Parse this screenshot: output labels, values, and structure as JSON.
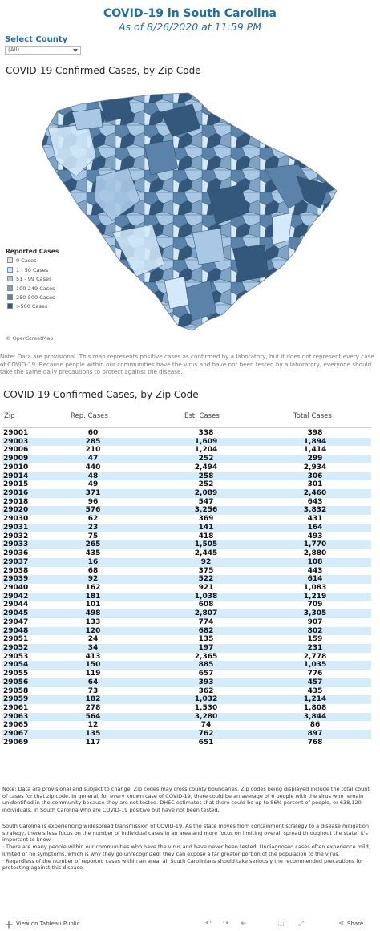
{
  "header": {
    "title": "COVID-19 in South Carolina",
    "subtitle": "As of 8/26/2020 at 11:59 PM"
  },
  "filter": {
    "label": "Select County",
    "value": "(All)"
  },
  "map": {
    "title": "COVID-19 Confirmed Cases, by Zip Code",
    "legend_title": "Reported Cases",
    "legend": [
      {
        "label": "0 Cases",
        "color": "#e6e6e6"
      },
      {
        "label": "1 - 50 Cases",
        "color": "#d4eafa"
      },
      {
        "label": "51 - 99 Cases",
        "color": "#a8c8e6"
      },
      {
        "label": "100-249 Cases",
        "color": "#7fa3c5"
      },
      {
        "label": "250-500 Cases",
        "color": "#5b83a9"
      },
      {
        "label": ">500 Cases",
        "color": "#34587c"
      }
    ],
    "attribution": "© OpenStreetMap"
  },
  "note_map": "Note: Data are provisional. This map represents positive cases as confirmed by a laboratory, but it does not represent every case of COVID-19. Because people within our communities have the virus and have not been tested by a laboratory, everyone should take the same daily precautions to protect against the disease.",
  "table": {
    "title": "COVID-19 Confirmed Cases, by Zip Code",
    "columns": [
      "Zip",
      "Rep. Cases",
      "Est. Cases",
      "Total Cases"
    ],
    "rows": [
      [
        "29001",
        "60",
        "338",
        "398"
      ],
      [
        "29003",
        "285",
        "1,609",
        "1,894"
      ],
      [
        "29006",
        "210",
        "1,204",
        "1,414"
      ],
      [
        "29009",
        "47",
        "252",
        "299"
      ],
      [
        "29010",
        "440",
        "2,494",
        "2,934"
      ],
      [
        "29014",
        "48",
        "258",
        "306"
      ],
      [
        "29015",
        "49",
        "252",
        "301"
      ],
      [
        "29016",
        "371",
        "2,089",
        "2,460"
      ],
      [
        "29018",
        "96",
        "547",
        "643"
      ],
      [
        "29020",
        "576",
        "3,256",
        "3,832"
      ],
      [
        "29030",
        "62",
        "369",
        "431"
      ],
      [
        "29031",
        "23",
        "141",
        "164"
      ],
      [
        "29032",
        "75",
        "418",
        "493"
      ],
      [
        "29033",
        "265",
        "1,505",
        "1,770"
      ],
      [
        "29036",
        "435",
        "2,445",
        "2,880"
      ],
      [
        "29037",
        "16",
        "92",
        "108"
      ],
      [
        "29038",
        "68",
        "375",
        "443"
      ],
      [
        "29039",
        "92",
        "522",
        "614"
      ],
      [
        "29040",
        "162",
        "921",
        "1,083"
      ],
      [
        "29042",
        "181",
        "1,038",
        "1,219"
      ],
      [
        "29044",
        "101",
        "608",
        "709"
      ],
      [
        "29045",
        "498",
        "2,807",
        "3,305"
      ],
      [
        "29047",
        "133",
        "774",
        "907"
      ],
      [
        "29048",
        "120",
        "682",
        "802"
      ],
      [
        "29051",
        "24",
        "135",
        "159"
      ],
      [
        "29052",
        "34",
        "197",
        "231"
      ],
      [
        "29053",
        "413",
        "2,365",
        "2,778"
      ],
      [
        "29054",
        "150",
        "885",
        "1,035"
      ],
      [
        "29055",
        "119",
        "657",
        "776"
      ],
      [
        "29056",
        "64",
        "393",
        "457"
      ],
      [
        "29058",
        "73",
        "362",
        "435"
      ],
      [
        "29059",
        "182",
        "1,032",
        "1,214"
      ],
      [
        "29061",
        "278",
        "1,530",
        "1,808"
      ],
      [
        "29063",
        "564",
        "3,280",
        "3,844"
      ],
      [
        "29065",
        "12",
        "74",
        "86"
      ],
      [
        "29067",
        "135",
        "762",
        "897"
      ],
      [
        "29069",
        "117",
        "651",
        "768"
      ]
    ]
  },
  "note_table": "Note: Data are provisional and subject to change. Zip codes may cross county boundaries. Zip codes being displayed include the total count of cases for that zip code. In general, for every known case of COVID-19, there could be an average of 6 people with the virus who remain unidentified in the community because they are not tested. DHEC estimates that there could be up to 86% percent of people, or 638,120 individuals, in South Carolina who are COVID-19 positive but have not been tested.",
  "note_transmission": [
    "South Carolina is experiencing widespread transmission of COVID-19. As the state moves from containment strategy to a disease mitigation strategy, there's less focus on the number of individual cases in an area and more focus on limiting overall spread throughout the state. It's important to know:",
    "· There are many people within our communities who have the virus and have never been tested. Undiagnosed cases often experience mild, limited or no symptoms, which is why they go unrecognized; they can expose a far greater portion of the population to the virus.",
    "· Regardless of the number of reported cases within an area, all South Carolinians should take seriously the recommended precautions for protecting against this disease."
  ],
  "footer": {
    "view_label": "View on Tableau Public",
    "share_label": "Share"
  }
}
